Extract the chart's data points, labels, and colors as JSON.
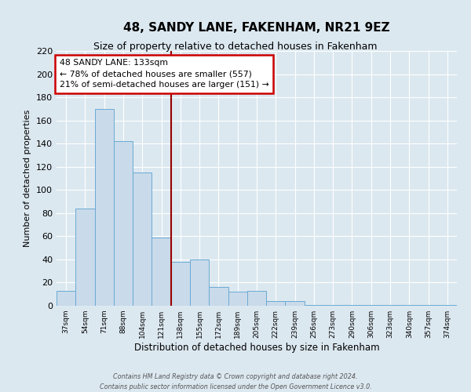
{
  "title": "48, SANDY LANE, FAKENHAM, NR21 9EZ",
  "subtitle": "Size of property relative to detached houses in Fakenham",
  "xlabel": "Distribution of detached houses by size in Fakenham",
  "ylabel": "Number of detached properties",
  "bin_labels": [
    "37sqm",
    "54sqm",
    "71sqm",
    "88sqm",
    "104sqm",
    "121sqm",
    "138sqm",
    "155sqm",
    "172sqm",
    "189sqm",
    "205sqm",
    "222sqm",
    "239sqm",
    "256sqm",
    "273sqm",
    "290sqm",
    "306sqm",
    "323sqm",
    "340sqm",
    "357sqm",
    "374sqm"
  ],
  "bar_heights": [
    13,
    84,
    170,
    142,
    115,
    59,
    38,
    40,
    16,
    12,
    13,
    4,
    4,
    1,
    1,
    1,
    1,
    1,
    1,
    1,
    1
  ],
  "bar_color": "#c9daea",
  "bar_edge_color": "#6aaad4",
  "vline_x_index": 6,
  "vline_color": "#990000",
  "annotation_text": "48 SANDY LANE: 133sqm\n← 78% of detached houses are smaller (557)\n21% of semi-detached houses are larger (151) →",
  "annotation_box_facecolor": "#ffffff",
  "annotation_box_edgecolor": "#cc0000",
  "ylim": [
    0,
    220
  ],
  "yticks": [
    0,
    20,
    40,
    60,
    80,
    100,
    120,
    140,
    160,
    180,
    200,
    220
  ],
  "footer_line1": "Contains HM Land Registry data © Crown copyright and database right 2024.",
  "footer_line2": "Contains public sector information licensed under the Open Government Licence v3.0.",
  "bg_color": "#dce8f0",
  "plot_bg_color": "#dce8f0"
}
